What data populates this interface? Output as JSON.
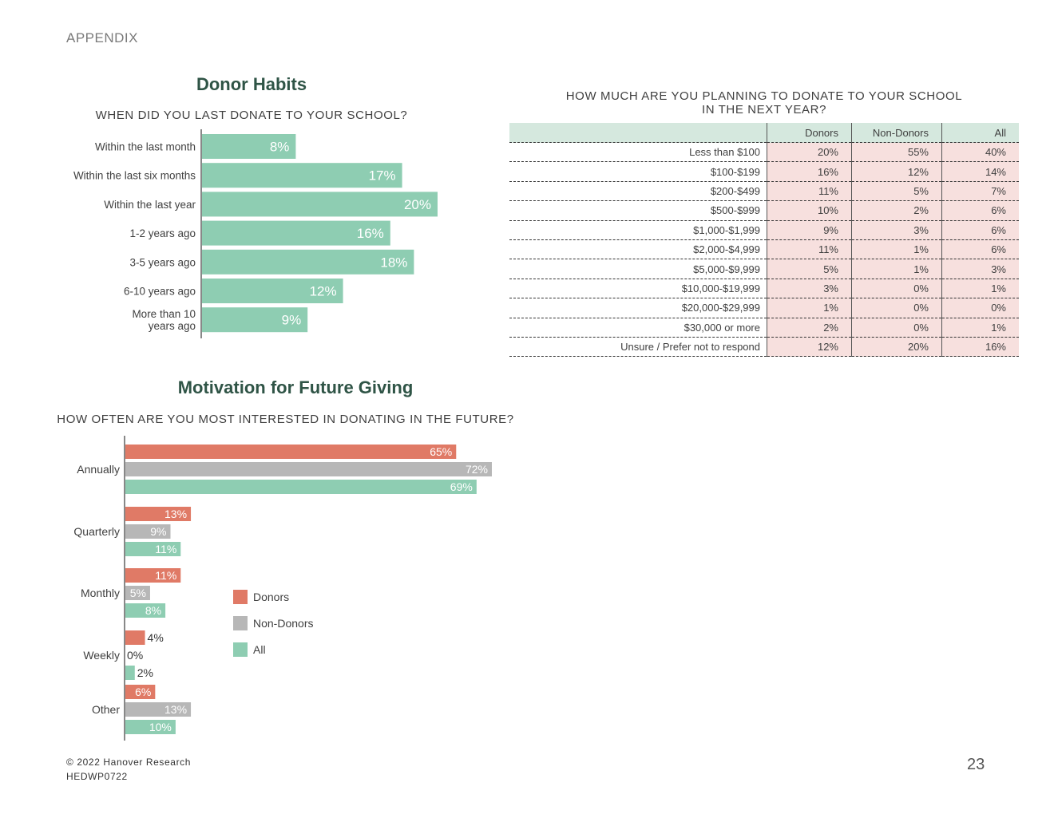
{
  "page": {
    "header": "APPENDIX",
    "footer_line1": "© 2022 Hanover Research",
    "footer_line2": "HEDWP0722",
    "page_number": "23"
  },
  "donor_habits": {
    "section_title": "Donor Habits",
    "question": "WHEN DID YOU LAST DONATE TO YOUR SCHOOL?"
  },
  "motivation": {
    "section_title": "Motivation for Future Giving",
    "question": "HOW OFTEN ARE YOU MOST INTERESTED IN DONATING IN THE FUTURE?"
  },
  "donation_table": {
    "question_line1": "HOW MUCH ARE YOU PLANNING TO DONATE TO YOUR SCHOOL",
    "question_line2": "IN THE NEXT YEAR?",
    "columns": [
      "Donors",
      "Non-Donors",
      "All"
    ],
    "rows": [
      {
        "label": "Less than $100",
        "values": [
          "20%",
          "55%",
          "40%"
        ]
      },
      {
        "label": "$100-$199",
        "values": [
          "16%",
          "12%",
          "14%"
        ]
      },
      {
        "label": "$200-$499",
        "values": [
          "11%",
          "5%",
          "7%"
        ]
      },
      {
        "label": "$500-$999",
        "values": [
          "10%",
          "2%",
          "6%"
        ]
      },
      {
        "label": "$1,000-$1,999",
        "values": [
          "9%",
          "3%",
          "6%"
        ]
      },
      {
        "label": "$2,000-$4,999",
        "values": [
          "11%",
          "1%",
          "6%"
        ]
      },
      {
        "label": "$5,000-$9,999",
        "values": [
          "5%",
          "1%",
          "3%"
        ]
      },
      {
        "label": "$10,000-$19,999",
        "values": [
          "3%",
          "0%",
          "1%"
        ]
      },
      {
        "label": "$20,000-$29,999",
        "values": [
          "1%",
          "0%",
          "0%"
        ]
      },
      {
        "label": "$30,000 or more",
        "values": [
          "2%",
          "0%",
          "1%"
        ]
      },
      {
        "label": "Unsure / Prefer not to respond",
        "values": [
          "12%",
          "20%",
          "16%"
        ]
      }
    ]
  },
  "chart_data": [
    {
      "type": "bar",
      "orientation": "horizontal",
      "title": "WHEN DID YOU LAST DONATE TO YOUR SCHOOL?",
      "categories": [
        [
          "Within the last month"
        ],
        [
          "Within the last six months"
        ],
        [
          "Within the last year"
        ],
        [
          "1-2 years ago"
        ],
        [
          "3-5 years ago"
        ],
        [
          "6-10 years ago"
        ],
        [
          "More than 10",
          "years ago"
        ]
      ],
      "values": [
        8,
        17,
        20,
        16,
        18,
        12,
        9
      ],
      "labels": [
        "8%",
        "17%",
        "20%",
        "16%",
        "18%",
        "12%",
        "9%"
      ],
      "color": "#8ecdb2",
      "xlim": [
        0,
        20
      ]
    },
    {
      "type": "bar",
      "orientation": "horizontal",
      "title": "HOW OFTEN ARE YOU MOST INTERESTED IN DONATING IN THE FUTURE?",
      "categories": [
        "Annually",
        "Quarterly",
        "Monthly",
        "Weekly",
        "Other"
      ],
      "series": [
        {
          "name": "Donors",
          "color": "#e07a66",
          "values": [
            65,
            13,
            11,
            4,
            6
          ],
          "labels": [
            "65%",
            "13%",
            "11%",
            "4%",
            "6%"
          ]
        },
        {
          "name": "Non-Donors",
          "color": "#b7b7b7",
          "values": [
            72,
            9,
            5,
            0,
            13
          ],
          "labels": [
            "72%",
            "9%",
            "5%",
            "0%",
            "13%"
          ]
        },
        {
          "name": "All",
          "color": "#8ecdb2",
          "values": [
            69,
            11,
            8,
            2,
            10
          ],
          "labels": [
            "69%",
            "11%",
            "8%",
            "2%",
            "10%"
          ]
        }
      ],
      "legend": "right",
      "xlim": [
        0,
        72
      ]
    }
  ]
}
